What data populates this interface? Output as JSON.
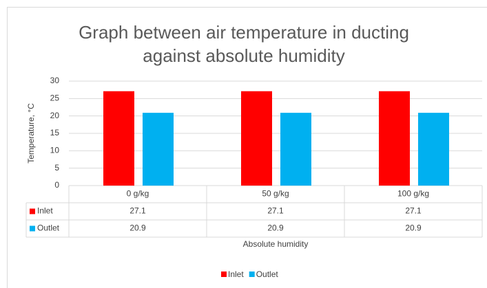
{
  "chart_data": {
    "type": "bar",
    "title": "Graph between air temperature in ducting against absolute humidity",
    "x_label": "Absolute humidity",
    "y_label": "Temperature, °C",
    "categories": [
      "0 g/kg",
      "50 g/kg",
      "100 g/kg"
    ],
    "series": [
      {
        "name": "Inlet",
        "color": "#ff0000",
        "values": [
          27.1,
          27.1,
          27.1
        ]
      },
      {
        "name": "Outlet",
        "color": "#00b0f0",
        "values": [
          20.9,
          20.9,
          20.9
        ]
      }
    ],
    "ylim": [
      0,
      30
    ],
    "yticks": [
      0,
      5,
      10,
      15,
      20,
      25,
      30
    ],
    "grid": true,
    "data_table": true,
    "legend": "bottom"
  }
}
